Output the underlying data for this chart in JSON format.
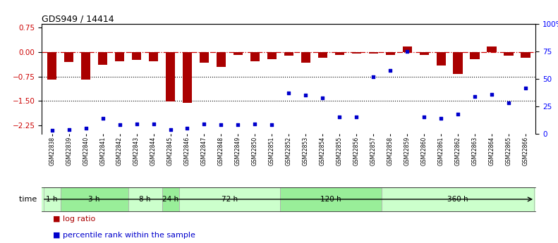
{
  "title": "GDS949 / 14414",
  "samples": [
    "GSM22838",
    "GSM22839",
    "GSM22840",
    "GSM22841",
    "GSM22842",
    "GSM22843",
    "GSM22844",
    "GSM22845",
    "GSM22846",
    "GSM22847",
    "GSM22848",
    "GSM22849",
    "GSM22850",
    "GSM22851",
    "GSM22852",
    "GSM22853",
    "GSM22854",
    "GSM22855",
    "GSM22856",
    "GSM22857",
    "GSM22858",
    "GSM22859",
    "GSM22860",
    "GSM22861",
    "GSM22862",
    "GSM22863",
    "GSM22864",
    "GSM22865",
    "GSM22866"
  ],
  "log_ratio": [
    -0.85,
    -0.3,
    -0.85,
    -0.38,
    -0.28,
    -0.25,
    -0.28,
    -1.52,
    -1.55,
    -0.32,
    -0.45,
    -0.08,
    -0.28,
    -0.22,
    -0.12,
    -0.32,
    -0.18,
    -0.08,
    -0.05,
    -0.05,
    -0.08,
    0.18,
    -0.08,
    -0.42,
    -0.68,
    -0.22,
    0.18,
    -0.12,
    -0.18
  ],
  "percentile": [
    3,
    4,
    5,
    14,
    8,
    9,
    9,
    4,
    5,
    9,
    8,
    8,
    9,
    8,
    37,
    35,
    33,
    15,
    15,
    52,
    58,
    75,
    15,
    14,
    18,
    34,
    36,
    28,
    42
  ],
  "time_groups": [
    {
      "label": "1 h",
      "start": 0,
      "end": 1,
      "color": "#ccffcc"
    },
    {
      "label": "3 h",
      "start": 1,
      "end": 5,
      "color": "#99ee99"
    },
    {
      "label": "8 h",
      "start": 5,
      "end": 7,
      "color": "#ccffcc"
    },
    {
      "label": "24 h",
      "start": 7,
      "end": 8,
      "color": "#99ee99"
    },
    {
      "label": "72 h",
      "start": 8,
      "end": 14,
      "color": "#ccffcc"
    },
    {
      "label": "120 h",
      "start": 14,
      "end": 20,
      "color": "#99ee99"
    },
    {
      "label": "360 h",
      "start": 20,
      "end": 29,
      "color": "#ccffcc"
    }
  ],
  "ylim_left": [
    -2.5,
    0.85
  ],
  "ylim_right": [
    0,
    100
  ],
  "yticks_left": [
    -2.25,
    -1.5,
    -0.75,
    0,
    0.75
  ],
  "yticks_right": [
    0,
    25,
    50,
    75,
    100
  ],
  "bar_color": "#aa0000",
  "scatter_color": "#0000cc",
  "dashline_color": "#cc0000",
  "hline_dotted_vals": [
    -0.75,
    -1.5
  ],
  "background_color": "#ffffff",
  "legend_bar_label": "log ratio",
  "legend_scatter_label": "percentile rank within the sample"
}
